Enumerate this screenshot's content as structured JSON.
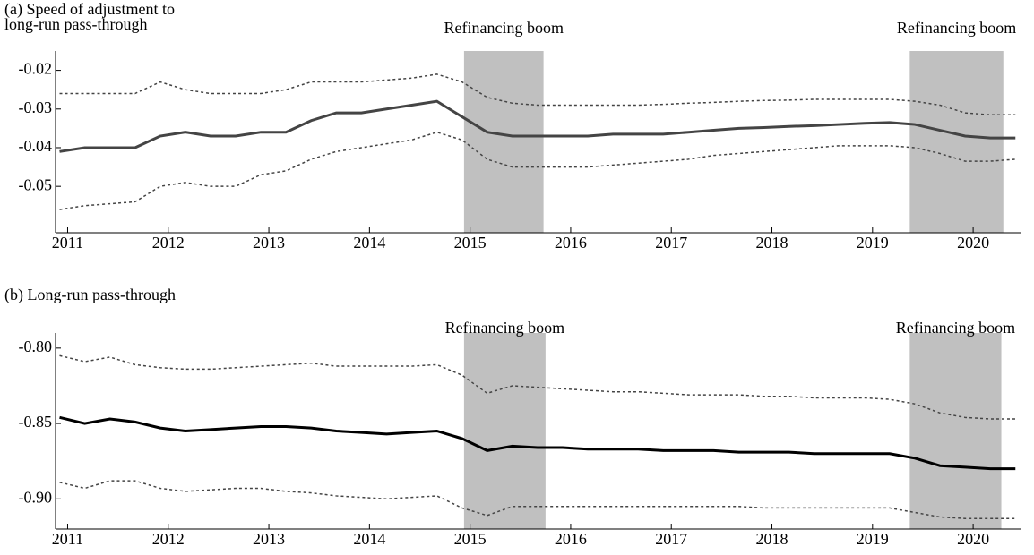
{
  "chart_data": [
    {
      "type": "line",
      "title": [
        "(a) Speed of adjustment to",
        "long-run pass-through"
      ],
      "annotations": [
        {
          "text": "Refinancing boom",
          "x": [
            2014.94,
            2015.73
          ]
        },
        {
          "text": "Refinancing boom",
          "x": [
            2019.37,
            2020.3
          ]
        }
      ],
      "shade_color": "#c0c0c0",
      "xlim": [
        2010.88,
        2020.48
      ],
      "xticks": [
        2011,
        2012,
        2013,
        2014,
        2015,
        2016,
        2017,
        2018,
        2019,
        2020
      ],
      "ylim": [
        -0.062,
        -0.015
      ],
      "yticks": [
        -0.02,
        -0.03,
        -0.04,
        -0.05
      ],
      "x": [
        2010.92,
        2011.17,
        2011.42,
        2011.67,
        2011.92,
        2012.17,
        2012.42,
        2012.67,
        2012.92,
        2013.17,
        2013.42,
        2013.67,
        2013.92,
        2014.17,
        2014.42,
        2014.67,
        2014.92,
        2015.17,
        2015.42,
        2015.67,
        2015.92,
        2016.17,
        2016.42,
        2016.67,
        2016.92,
        2017.17,
        2017.42,
        2017.67,
        2017.92,
        2018.17,
        2018.42,
        2018.67,
        2018.92,
        2019.17,
        2019.42,
        2019.67,
        2019.92,
        2020.17,
        2020.42
      ],
      "series": [
        {
          "color": "#444444",
          "style": "solid",
          "values": [
            -0.041,
            -0.04,
            -0.04,
            -0.04,
            -0.037,
            -0.036,
            -0.037,
            -0.037,
            -0.036,
            -0.036,
            -0.033,
            -0.031,
            -0.031,
            -0.03,
            -0.029,
            -0.028,
            -0.032,
            -0.036,
            -0.037,
            -0.037,
            -0.037,
            -0.037,
            -0.0365,
            -0.0365,
            -0.0365,
            -0.036,
            -0.0355,
            -0.035,
            -0.0348,
            -0.0345,
            -0.0343,
            -0.034,
            -0.0337,
            -0.0335,
            -0.034,
            -0.0355,
            -0.037,
            -0.0375,
            -0.0375
          ]
        },
        {
          "color": "#444444",
          "style": "dashed",
          "values": [
            -0.026,
            -0.026,
            -0.026,
            -0.026,
            -0.023,
            -0.025,
            -0.026,
            -0.026,
            -0.026,
            -0.025,
            -0.023,
            -0.023,
            -0.023,
            -0.0225,
            -0.022,
            -0.021,
            -0.023,
            -0.027,
            -0.0285,
            -0.029,
            -0.029,
            -0.029,
            -0.029,
            -0.029,
            -0.0288,
            -0.0285,
            -0.0283,
            -0.028,
            -0.0278,
            -0.0277,
            -0.0275,
            -0.0275,
            -0.0275,
            -0.0275,
            -0.028,
            -0.029,
            -0.031,
            -0.0315,
            -0.0315
          ]
        },
        {
          "color": "#444444",
          "style": "dashed",
          "values": [
            -0.056,
            -0.055,
            -0.0545,
            -0.054,
            -0.05,
            -0.049,
            -0.05,
            -0.05,
            -0.047,
            -0.046,
            -0.043,
            -0.041,
            -0.04,
            -0.039,
            -0.038,
            -0.036,
            -0.038,
            -0.043,
            -0.045,
            -0.045,
            -0.045,
            -0.045,
            -0.0445,
            -0.044,
            -0.0435,
            -0.043,
            -0.042,
            -0.0415,
            -0.041,
            -0.0405,
            -0.04,
            -0.0395,
            -0.0395,
            -0.0395,
            -0.04,
            -0.0415,
            -0.0435,
            -0.0435,
            -0.043
          ]
        }
      ]
    },
    {
      "type": "line",
      "title": [
        "(b) Long-run pass-through"
      ],
      "annotations": [
        {
          "text": "Refinancing boom",
          "x": [
            2014.94,
            2015.75
          ]
        },
        {
          "text": "Refinancing boom",
          "x": [
            2019.37,
            2020.28
          ]
        }
      ],
      "shade_color": "#c0c0c0",
      "xlim": [
        2010.88,
        2020.48
      ],
      "xticks": [
        2011,
        2012,
        2013,
        2014,
        2015,
        2016,
        2017,
        2018,
        2019,
        2020
      ],
      "ylim": [
        -0.92,
        -0.79
      ],
      "yticks": [
        {
          "value": -0.8,
          "label": "-0.80"
        },
        -0.85,
        {
          "value": -0.9,
          "label": "-0.90"
        }
      ],
      "x": [
        2010.92,
        2011.17,
        2011.42,
        2011.67,
        2011.92,
        2012.17,
        2012.42,
        2012.67,
        2012.92,
        2013.17,
        2013.42,
        2013.67,
        2013.92,
        2014.17,
        2014.42,
        2014.67,
        2014.92,
        2015.17,
        2015.42,
        2015.67,
        2015.92,
        2016.17,
        2016.42,
        2016.67,
        2016.92,
        2017.17,
        2017.42,
        2017.67,
        2017.92,
        2018.17,
        2018.42,
        2018.67,
        2018.92,
        2019.17,
        2019.42,
        2019.67,
        2019.92,
        2020.17,
        2020.42
      ],
      "series": [
        {
          "color": "#000000",
          "style": "solid",
          "values": [
            -0.846,
            -0.85,
            -0.847,
            -0.849,
            -0.853,
            -0.855,
            -0.854,
            -0.853,
            -0.852,
            -0.852,
            -0.853,
            -0.855,
            -0.856,
            -0.857,
            -0.856,
            -0.855,
            -0.86,
            -0.868,
            -0.865,
            -0.866,
            -0.866,
            -0.867,
            -0.867,
            -0.867,
            -0.868,
            -0.868,
            -0.868,
            -0.869,
            -0.869,
            -0.869,
            -0.87,
            -0.87,
            -0.87,
            -0.87,
            -0.873,
            -0.878,
            -0.879,
            -0.88,
            -0.88
          ]
        },
        {
          "color": "#444444",
          "style": "dashed",
          "values": [
            -0.805,
            -0.809,
            -0.806,
            -0.811,
            -0.813,
            -0.814,
            -0.814,
            -0.813,
            -0.812,
            -0.811,
            -0.81,
            -0.812,
            -0.812,
            -0.812,
            -0.812,
            -0.811,
            -0.818,
            -0.83,
            -0.825,
            -0.826,
            -0.827,
            -0.828,
            -0.829,
            -0.829,
            -0.83,
            -0.831,
            -0.831,
            -0.831,
            -0.832,
            -0.832,
            -0.833,
            -0.833,
            -0.833,
            -0.834,
            -0.837,
            -0.843,
            -0.846,
            -0.847,
            -0.847
          ]
        },
        {
          "color": "#444444",
          "style": "dashed",
          "values": [
            -0.889,
            -0.893,
            -0.888,
            -0.888,
            -0.893,
            -0.895,
            -0.894,
            -0.893,
            -0.893,
            -0.895,
            -0.896,
            -0.898,
            -0.899,
            -0.9,
            -0.899,
            -0.898,
            -0.906,
            -0.911,
            -0.905,
            -0.905,
            -0.905,
            -0.905,
            -0.905,
            -0.905,
            -0.905,
            -0.905,
            -0.905,
            -0.905,
            -0.906,
            -0.906,
            -0.906,
            -0.906,
            -0.906,
            -0.906,
            -0.909,
            -0.912,
            -0.913,
            -0.913,
            -0.913
          ]
        }
      ]
    }
  ]
}
